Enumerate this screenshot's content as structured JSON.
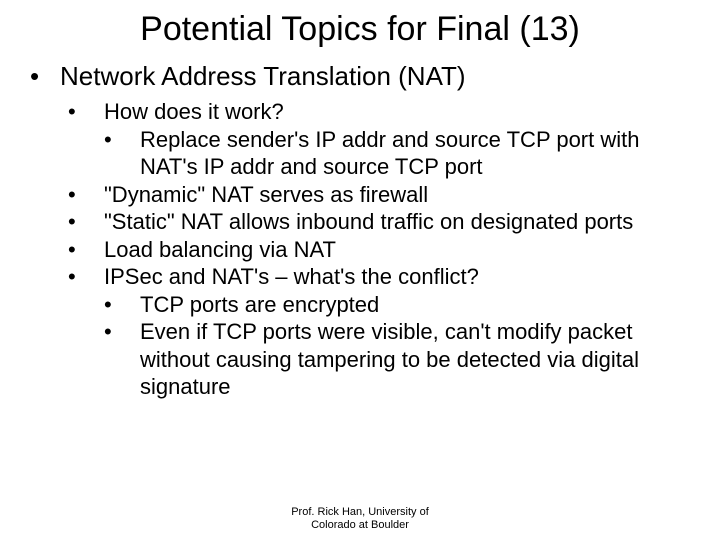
{
  "title": "Potential Topics for Final (13)",
  "level1_bullet": "•",
  "level1_text": "Network Address Translation (NAT)",
  "items": [
    {
      "bullet": "•",
      "text": "How does it work?",
      "level": 2
    },
    {
      "bullet": "•",
      "text": "Replace sender's IP addr and source TCP port with NAT's IP addr and source TCP port",
      "level": 3
    },
    {
      "bullet": "•",
      "text": "\"Dynamic\" NAT serves as firewall",
      "level": 2
    },
    {
      "bullet": "•",
      "text": "\"Static\" NAT allows inbound traffic on designated ports",
      "level": 2
    },
    {
      "bullet": "•",
      "text": "Load balancing via NAT",
      "level": 2
    },
    {
      "bullet": "•",
      "text": "IPSec and NAT's – what's the conflict?",
      "level": 2
    },
    {
      "bullet": "•",
      "text": "TCP ports are encrypted",
      "level": 3
    },
    {
      "bullet": "•",
      "text": "Even if TCP ports were visible, can't modify packet without causing tampering to be detected via digital signature",
      "level": 3
    }
  ],
  "footer_line1": "Prof. Rick Han, University of",
  "footer_line2": "Colorado at Boulder",
  "colors": {
    "background": "#ffffff",
    "text": "#000000"
  },
  "typography": {
    "title_size": 34,
    "l1_size": 26,
    "l2_size": 22,
    "l3_size": 22,
    "footer_size": 11,
    "font_family": "Comic Sans MS"
  }
}
